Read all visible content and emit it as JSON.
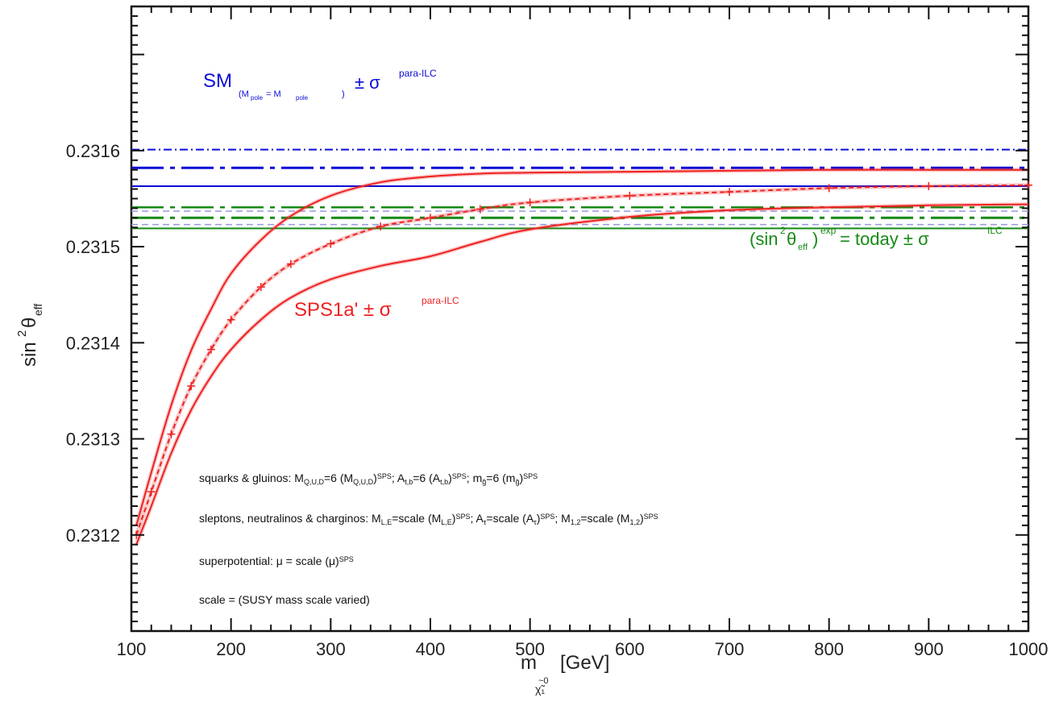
{
  "chart_data": {
    "type": "line",
    "xlabel": "m",
    "xlabel_sub": "χ̃₁",
    "xlabel_sub_pre": "~0",
    "xlabel_unit": "[GeV]",
    "ylabel": "sin",
    "ylabel_sup": "2",
    "ylabel_theta": "θ",
    "ylabel_sub": "eff",
    "xlim": [
      100,
      1000
    ],
    "ylim": [
      0.2311,
      0.23175
    ],
    "x_ticks": [
      100,
      200,
      300,
      400,
      500,
      600,
      700,
      800,
      900,
      1000
    ],
    "x_tick_labels": [
      "100",
      "200",
      "300",
      "400",
      "500",
      "600",
      "700",
      "800",
      "900",
      "1000"
    ],
    "y_ticks": [
      0.2312,
      0.2313,
      0.2314,
      0.2315,
      0.2316
    ],
    "y_tick_labels": [
      "0.2312",
      "0.2313",
      "0.2314",
      "0.2315",
      "0.2316"
    ],
    "grid": false,
    "reference_bands": [
      {
        "group": "SM",
        "color": "#0b0bd6",
        "central": 0.231582,
        "upper": 0.231601,
        "lower": 0.231563
      },
      {
        "group": "exp",
        "color": "#168a16",
        "central": 0.23153,
        "upper": 0.231541,
        "lower": 0.231519,
        "inner_upper": 0.231537,
        "inner_lower": 0.231523
      }
    ],
    "series": [
      {
        "role": "upper",
        "color": "#ee2222",
        "x": [
          105,
          120,
          140,
          160,
          180,
          200,
          230,
          260,
          300,
          350,
          400,
          450,
          500,
          600,
          700,
          800,
          900,
          1000
        ],
        "y": [
          0.23121,
          0.231265,
          0.231335,
          0.231392,
          0.231435,
          0.231472,
          0.231507,
          0.231532,
          0.231553,
          0.231567,
          0.231573,
          0.231576,
          0.231577,
          0.231578,
          0.231579,
          0.23158,
          0.23158,
          0.23158
        ]
      },
      {
        "role": "central",
        "color": "#ee2222",
        "marker": "+",
        "x": [
          105,
          120,
          140,
          160,
          180,
          200,
          230,
          260,
          300,
          350,
          400,
          450,
          500,
          600,
          700,
          800,
          900,
          1000
        ],
        "y": [
          0.2312,
          0.231245,
          0.231305,
          0.231355,
          0.231393,
          0.231424,
          0.231458,
          0.231482,
          0.231503,
          0.231521,
          0.23153,
          0.231539,
          0.231546,
          0.231553,
          0.231557,
          0.231561,
          0.231563,
          0.231564
        ]
      },
      {
        "role": "lower",
        "color": "#ee2222",
        "x": [
          105,
          120,
          140,
          160,
          180,
          200,
          230,
          260,
          300,
          350,
          400,
          450,
          500,
          600,
          700,
          800,
          900,
          1000
        ],
        "y": [
          0.23119,
          0.23123,
          0.231285,
          0.23133,
          0.231365,
          0.231393,
          0.231424,
          0.231447,
          0.231466,
          0.23148,
          0.23149,
          0.231505,
          0.231518,
          0.231531,
          0.231538,
          0.231541,
          0.231543,
          0.231544
        ]
      }
    ],
    "annotations": {
      "sm": {
        "main": "SM",
        "sub": "(M",
        "sub2": "pole",
        "sub3": " = M",
        "sub4": "pole",
        "sub5": ")",
        "pm": "± σ",
        "sup": "para-ILC",
        "color": "#0b0bd6"
      },
      "exp": {
        "main": "(sin",
        "sup1": "2",
        "theta": "θ",
        "sub": "eff",
        "close": ")",
        "sup2": "exp",
        "rest": " = today ± σ",
        "sup3": "ILC",
        "color": "#168a16"
      },
      "sps": {
        "main": "SPS1a' ± σ",
        "sup": "para-ILC",
        "color": "#ee2222"
      },
      "notes": [
        "squarks & gluinos: M",
        "sleptons, neutralinos & charginos: M",
        "superpotential:  μ = scale (μ)",
        "scale = (SUSY mass scale varied)"
      ],
      "note1_parts": [
        "squarks & gluinos: M",
        "Q,U,D",
        "=6 (M",
        "Q,U,D",
        ")",
        "SPS",
        "; A",
        "t,b",
        "=6 (A",
        "t,b",
        ")",
        "SPS",
        "; m",
        "g̃",
        "=6 (m",
        "g̃",
        ")",
        "SPS"
      ],
      "note2_parts": [
        "sleptons, neutralinos & charginos: M",
        "L,E",
        "=scale (M",
        "L,E",
        ")",
        "SPS",
        "; A",
        "τ",
        "=scale (A",
        "τ",
        ")",
        "SPS",
        "; M",
        "1,2",
        "=scale (M",
        "1,2",
        ")",
        "SPS"
      ],
      "note3_parts": [
        "superpotential:  μ = scale (μ)",
        "SPS"
      ],
      "note4_parts": [
        "scale = (SUSY mass scale varied)"
      ]
    }
  }
}
